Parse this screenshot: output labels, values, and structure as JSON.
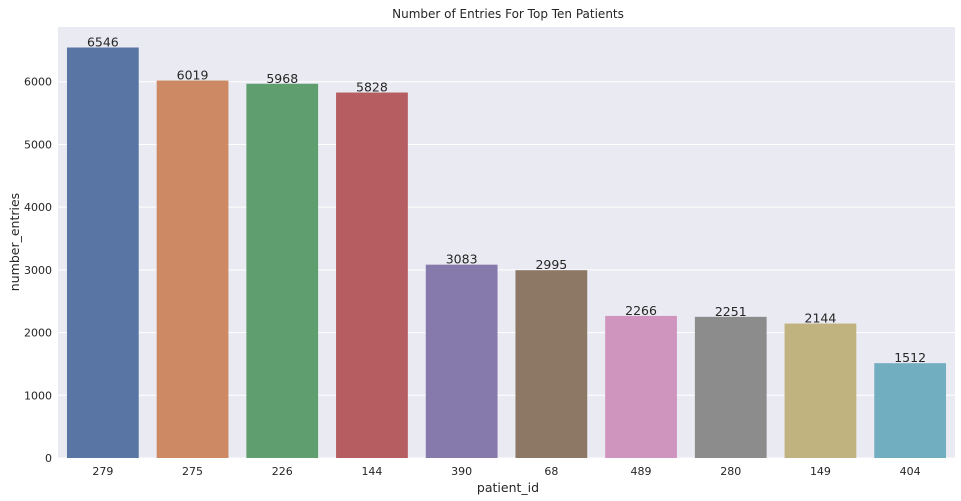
{
  "chart_data": {
    "type": "bar",
    "title": "Number of Entries For Top Ten Patients",
    "xlabel": "patient_id",
    "ylabel": "number_entries",
    "categories": [
      "279",
      "275",
      "226",
      "144",
      "390",
      "68",
      "489",
      "280",
      "149",
      "404"
    ],
    "values": [
      6546,
      6019,
      5968,
      5828,
      3083,
      2995,
      2266,
      2251,
      2144,
      1512
    ],
    "data_labels": [
      "6546",
      "6019",
      "5968",
      "5828",
      "3083",
      "2995",
      "2266",
      "2251",
      "2144",
      "1512"
    ],
    "bar_colors": [
      "#5875a4",
      "#cc8963",
      "#5f9e6e",
      "#b55d60",
      "#857aab",
      "#8d7866",
      "#d095bf",
      "#8c8c8c",
      "#c1b37f",
      "#71aec0"
    ],
    "yticks": [
      0,
      1000,
      2000,
      3000,
      4000,
      5000,
      6000
    ],
    "ytick_labels": [
      "0",
      "1000",
      "2000",
      "3000",
      "4000",
      "5000",
      "6000"
    ],
    "ylim": [
      0,
      6873
    ],
    "grid": true,
    "background_color": "#eaeaf2",
    "grid_color": "#ffffff"
  }
}
